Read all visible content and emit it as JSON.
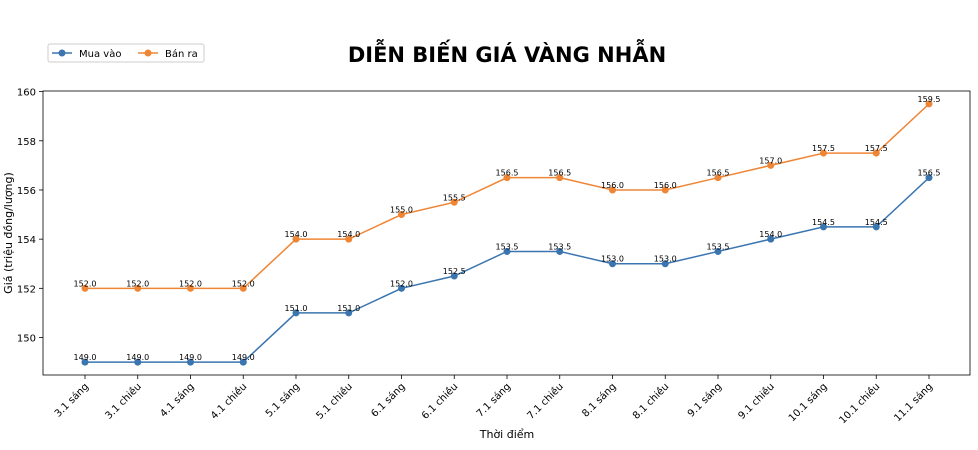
{
  "chart_data": {
    "type": "line",
    "title": "DIỄN BIẾN GIÁ VÀNG NHẪN",
    "xlabel": "Thời điểm",
    "ylabel": "Giá (triệu đồng/lượng)",
    "categories": [
      "3.1 sáng",
      "3.1 chiều",
      "4.1 sáng",
      "4.1 chiều",
      "5.1 sáng",
      "5.1 chiều",
      "6.1 sáng",
      "6.1 chiều",
      "7.1 sáng",
      "7.1 chiều",
      "8.1 sáng",
      "8.1 chiều",
      "9.1 sáng",
      "9.1 chiều",
      "10.1 sáng",
      "10.1 chiều",
      "11.1 sáng"
    ],
    "series": [
      {
        "name": "Mua vào",
        "color": "#3b75af",
        "values": [
          149,
          149,
          149,
          149,
          151,
          151,
          152,
          152.5,
          153.5,
          153.5,
          153,
          153,
          153.5,
          154,
          154.5,
          154.5,
          156.5
        ]
      },
      {
        "name": "Bán ra",
        "color": "#ef8636",
        "values": [
          152,
          152,
          152,
          152,
          154,
          154,
          155,
          155.5,
          156.5,
          156.5,
          156,
          156,
          156.5,
          157,
          157.5,
          157.5,
          159.5
        ]
      }
    ],
    "ylim": [
      148.475,
      160.025
    ],
    "yticks": [
      150,
      152,
      154,
      156,
      158,
      160
    ],
    "grid": false,
    "legend_position": "top-left",
    "data_labels": true
  }
}
